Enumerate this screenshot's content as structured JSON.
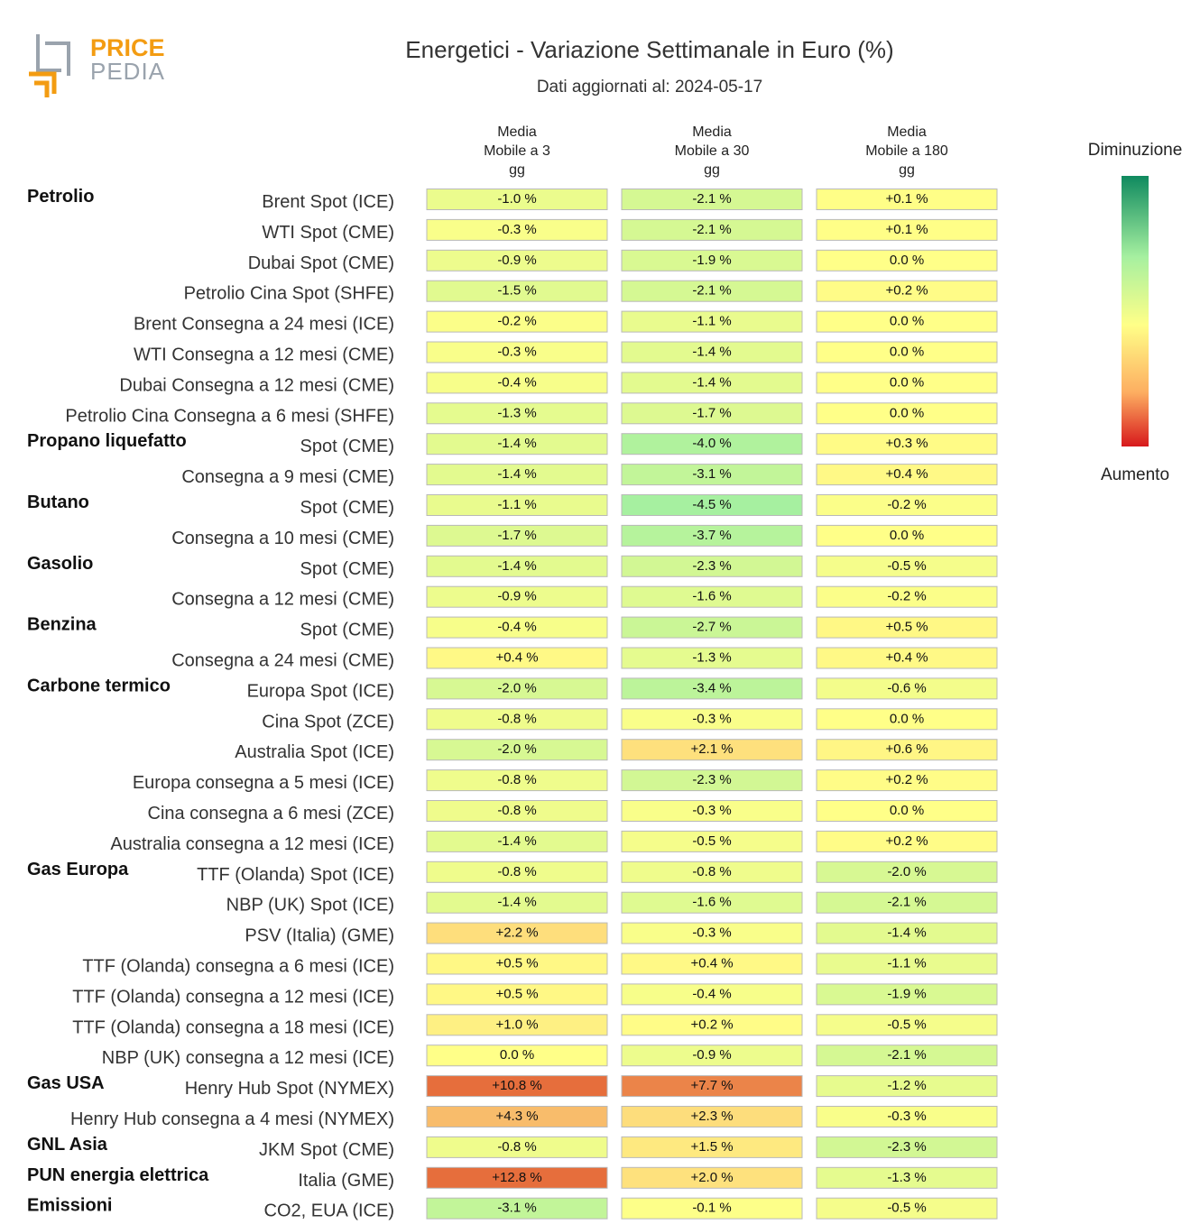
{
  "logo": {
    "line1": "PRICE",
    "line2": "PEDIA"
  },
  "title": "Energetici - Variazione Settimanale in Euro (%)",
  "subtitle": "Dati aggiornati al: 2024-05-17",
  "legend": {
    "top": "Diminuzione",
    "bottom": "Aumento"
  },
  "colors": {
    "green": "#0f8a5f",
    "yellow": "#ffff88",
    "red": "#d7191c"
  },
  "chart_data": {
    "type": "table",
    "title": "Energetici - Variazione Settimanale in Euro (%)",
    "columns": [
      [
        "Media",
        "Mobile a 3",
        "gg"
      ],
      [
        "Media",
        "Mobile a 30",
        "gg"
      ],
      [
        "Media",
        "Mobile a 180",
        "gg"
      ]
    ],
    "rows": [
      {
        "group": "Petrolio",
        "label": "Brent Spot (ICE)",
        "values": [
          "-1.0 %",
          "-2.1 %",
          "+0.1 %"
        ],
        "nums": [
          -1.0,
          -2.1,
          0.1
        ]
      },
      {
        "group": "",
        "label": "WTI Spot (CME)",
        "values": [
          "-0.3 %",
          "-2.1 %",
          "+0.1 %"
        ],
        "nums": [
          -0.3,
          -2.1,
          0.1
        ]
      },
      {
        "group": "",
        "label": "Dubai Spot (CME)",
        "values": [
          "-0.9 %",
          "-1.9 %",
          "0.0 %"
        ],
        "nums": [
          -0.9,
          -1.9,
          0.0
        ]
      },
      {
        "group": "",
        "label": "Petrolio Cina Spot (SHFE)",
        "values": [
          "-1.5 %",
          "-2.1 %",
          "+0.2 %"
        ],
        "nums": [
          -1.5,
          -2.1,
          0.2
        ]
      },
      {
        "group": "",
        "label": "Brent Consegna a 24 mesi (ICE)",
        "values": [
          "-0.2 %",
          "-1.1 %",
          "0.0 %"
        ],
        "nums": [
          -0.2,
          -1.1,
          0.0
        ]
      },
      {
        "group": "",
        "label": "WTI Consegna a 12 mesi (CME)",
        "values": [
          "-0.3 %",
          "-1.4 %",
          "0.0 %"
        ],
        "nums": [
          -0.3,
          -1.4,
          0.0
        ]
      },
      {
        "group": "",
        "label": "Dubai Consegna a 12 mesi (CME)",
        "values": [
          "-0.4 %",
          "-1.4 %",
          "0.0 %"
        ],
        "nums": [
          -0.4,
          -1.4,
          0.0
        ]
      },
      {
        "group": "",
        "label": "Petrolio Cina Consegna a 6 mesi (SHFE)",
        "values": [
          "-1.3 %",
          "-1.7 %",
          "0.0 %"
        ],
        "nums": [
          -1.3,
          -1.7,
          0.0
        ]
      },
      {
        "group": "Propano liquefatto",
        "label": "Spot (CME)",
        "values": [
          "-1.4 %",
          "-4.0 %",
          "+0.3 %"
        ],
        "nums": [
          -1.4,
          -4.0,
          0.3
        ]
      },
      {
        "group": "",
        "label": "Consegna a 9 mesi (CME)",
        "values": [
          "-1.4 %",
          "-3.1 %",
          "+0.4 %"
        ],
        "nums": [
          -1.4,
          -3.1,
          0.4
        ]
      },
      {
        "group": "Butano",
        "label": "Spot (CME)",
        "values": [
          "-1.1 %",
          "-4.5 %",
          "-0.2 %"
        ],
        "nums": [
          -1.1,
          -4.5,
          -0.2
        ]
      },
      {
        "group": "",
        "label": "Consegna a 10 mesi (CME)",
        "values": [
          "-1.7 %",
          "-3.7 %",
          "0.0 %"
        ],
        "nums": [
          -1.7,
          -3.7,
          0.0
        ]
      },
      {
        "group": "Gasolio",
        "label": "Spot (CME)",
        "values": [
          "-1.4 %",
          "-2.3 %",
          "-0.5 %"
        ],
        "nums": [
          -1.4,
          -2.3,
          -0.5
        ]
      },
      {
        "group": "",
        "label": "Consegna a 12 mesi (CME)",
        "values": [
          "-0.9 %",
          "-1.6 %",
          "-0.2 %"
        ],
        "nums": [
          -0.9,
          -1.6,
          -0.2
        ]
      },
      {
        "group": "Benzina",
        "label": "Spot (CME)",
        "values": [
          "-0.4 %",
          "-2.7 %",
          "+0.5 %"
        ],
        "nums": [
          -0.4,
          -2.7,
          0.5
        ]
      },
      {
        "group": "",
        "label": "Consegna a 24 mesi (CME)",
        "values": [
          "+0.4 %",
          "-1.3 %",
          "+0.4 %"
        ],
        "nums": [
          0.4,
          -1.3,
          0.4
        ]
      },
      {
        "group": "Carbone termico",
        "label": "Europa Spot (ICE)",
        "values": [
          "-2.0 %",
          "-3.4 %",
          "-0.6 %"
        ],
        "nums": [
          -2.0,
          -3.4,
          -0.6
        ]
      },
      {
        "group": "",
        "label": "Cina Spot (ZCE)",
        "values": [
          "-0.8 %",
          "-0.3 %",
          "0.0 %"
        ],
        "nums": [
          -0.8,
          -0.3,
          0.0
        ]
      },
      {
        "group": "",
        "label": "Australia Spot (ICE)",
        "values": [
          "-2.0 %",
          "+2.1 %",
          "+0.6 %"
        ],
        "nums": [
          -2.0,
          2.1,
          0.6
        ]
      },
      {
        "group": "",
        "label": "Europa consegna a 5 mesi (ICE)",
        "values": [
          "-0.8 %",
          "-2.3 %",
          "+0.2 %"
        ],
        "nums": [
          -0.8,
          -2.3,
          0.2
        ]
      },
      {
        "group": "",
        "label": "Cina consegna a 6 mesi (ZCE)",
        "values": [
          "-0.8 %",
          "-0.3 %",
          "0.0 %"
        ],
        "nums": [
          -0.8,
          -0.3,
          0.0
        ]
      },
      {
        "group": "",
        "label": "Australia consegna a 12 mesi (ICE)",
        "values": [
          "-1.4 %",
          "-0.5 %",
          "+0.2 %"
        ],
        "nums": [
          -1.4,
          -0.5,
          0.2
        ]
      },
      {
        "group": "Gas Europa",
        "label": "TTF (Olanda) Spot (ICE)",
        "values": [
          "-0.8 %",
          "-0.8 %",
          "-2.0 %"
        ],
        "nums": [
          -0.8,
          -0.8,
          -2.0
        ]
      },
      {
        "group": "",
        "label": "NBP (UK) Spot (ICE)",
        "values": [
          "-1.4 %",
          "-1.6 %",
          "-2.1 %"
        ],
        "nums": [
          -1.4,
          -1.6,
          -2.1
        ]
      },
      {
        "group": "",
        "label": "PSV (Italia) (GME)",
        "values": [
          "+2.2 %",
          "-0.3 %",
          "-1.4 %"
        ],
        "nums": [
          2.2,
          -0.3,
          -1.4
        ]
      },
      {
        "group": "",
        "label": "TTF (Olanda) consegna a 6 mesi (ICE)",
        "values": [
          "+0.5 %",
          "+0.4 %",
          "-1.1 %"
        ],
        "nums": [
          0.5,
          0.4,
          -1.1
        ]
      },
      {
        "group": "",
        "label": "TTF (Olanda) consegna a 12 mesi (ICE)",
        "values": [
          "+0.5 %",
          "-0.4 %",
          "-1.9 %"
        ],
        "nums": [
          0.5,
          -0.4,
          -1.9
        ]
      },
      {
        "group": "",
        "label": "TTF (Olanda) consegna a 18 mesi (ICE)",
        "values": [
          "+1.0 %",
          "+0.2 %",
          "-0.5 %"
        ],
        "nums": [
          1.0,
          0.2,
          -0.5
        ]
      },
      {
        "group": "",
        "label": "NBP (UK) consegna a 12 mesi (ICE)",
        "values": [
          "0.0 %",
          "-0.9 %",
          "-2.1 %"
        ],
        "nums": [
          0.0,
          -0.9,
          -2.1
        ]
      },
      {
        "group": "Gas USA",
        "label": "Henry Hub Spot (NYMEX)",
        "values": [
          "+10.8 %",
          "+7.7 %",
          "-1.2 %"
        ],
        "nums": [
          10.8,
          7.7,
          -1.2
        ]
      },
      {
        "group": "",
        "label": "Henry Hub consegna a 4 mesi (NYMEX)",
        "values": [
          "+4.3 %",
          "+2.3 %",
          "-0.3 %"
        ],
        "nums": [
          4.3,
          2.3,
          -0.3
        ]
      },
      {
        "group": "GNL Asia",
        "label": "JKM Spot (CME)",
        "values": [
          "-0.8 %",
          "+1.5 %",
          "-2.3 %"
        ],
        "nums": [
          -0.8,
          1.5,
          -2.3
        ]
      },
      {
        "group": "PUN energia elettrica",
        "label": "Italia (GME)",
        "values": [
          "+12.8 %",
          "+2.0 %",
          "-1.3 %"
        ],
        "nums": [
          12.8,
          2.0,
          -1.3
        ]
      },
      {
        "group": "Emissioni",
        "label": "CO2, EUA (ICE)",
        "values": [
          "-3.1 %",
          "-0.1 %",
          "-0.5 %"
        ],
        "nums": [
          -3.1,
          -0.1,
          -0.5
        ]
      }
    ]
  }
}
